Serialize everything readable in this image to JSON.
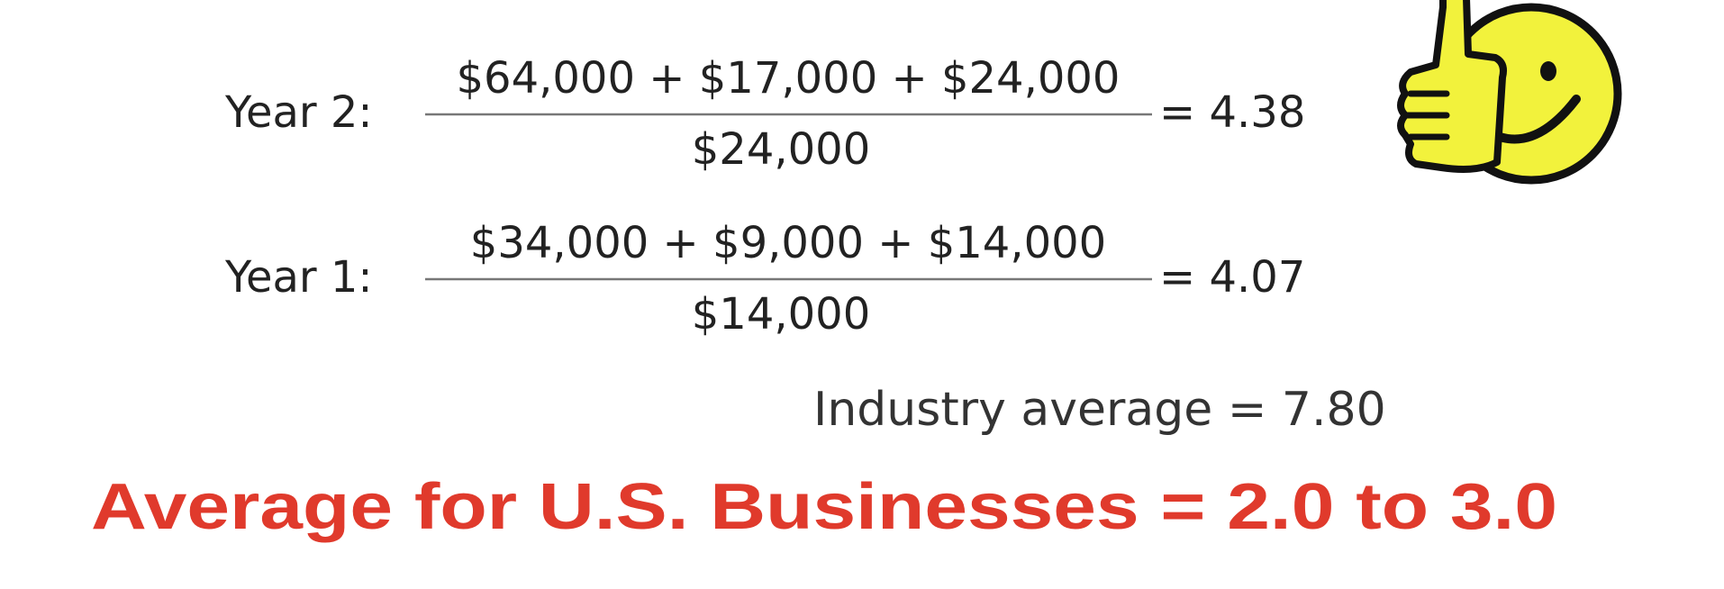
{
  "rows": [
    {
      "label": "Year 2:",
      "numerator": "$64,000 + $17,000 + $24,000",
      "denominator": "$24,000",
      "result": "= 4.38"
    },
    {
      "label": "Year 1:",
      "numerator": "$34,000 + $9,000 + $14,000",
      "denominator": "$14,000",
      "result": "= 4.07"
    }
  ],
  "industry_average": "Industry average = 7.80",
  "us_average": "Average for U.S. Businesses = 2.0 to 3.0"
}
